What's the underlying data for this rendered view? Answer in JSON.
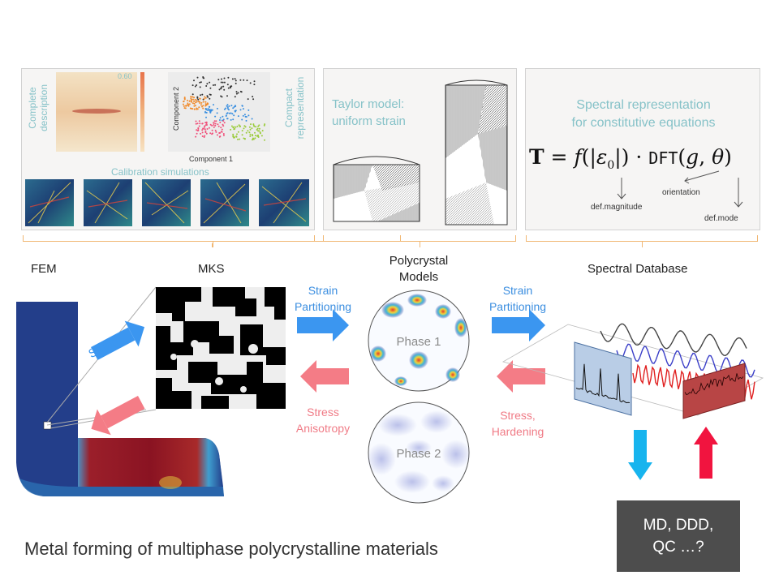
{
  "panels": {
    "left": {
      "heatmap_value": "0.60",
      "complete_description": "Complete description",
      "compact_representation": "Compact representation",
      "axis_y": "Component 2",
      "axis_x": "Component 1",
      "calibration": "Calibration simulations"
    },
    "middle": {
      "title_line1": "Taylor model:",
      "title_line2": "uniform strain"
    },
    "right": {
      "title_line1": "Spectral representation",
      "title_line2": "for constitutive equations",
      "ann_def_magnitude": "def.magnitude",
      "ann_orientation": "orientation",
      "ann_def_mode": "def.mode"
    }
  },
  "labels": {
    "fem": "FEM",
    "mks": "MKS",
    "polycrystal_line1": "Polycrystal",
    "polycrystal_line2": "Models",
    "spectral_database": "Spectral Database",
    "strain_arrow": "Strain",
    "stress_arrow": "Stress",
    "phase1": "Phase 1",
    "phase2": "Phase 2"
  },
  "flows": {
    "strain_partitioning_left_line1": "Strain",
    "strain_partitioning_left_line2": "Partitioning",
    "strain_partitioning_right_line1": "Strain",
    "strain_partitioning_right_line2": "Partitioning",
    "stress_anisotropy_line1": "Stress",
    "stress_anisotropy_line2": "Anisotropy",
    "stress_hardening_line1": "Stress,",
    "stress_hardening_line2": "Hardening"
  },
  "md_box": {
    "line1": "MD, DDD,",
    "line2": "QC …?"
  },
  "caption": "Metal forming of multiphase polycrystalline materials",
  "colors": {
    "teal_text": "#86c2c8",
    "blue_arrow": "#3b96f0",
    "red_arrow": "#f47c86",
    "cyan_arrow": "#17b4ee",
    "crimson_arrow": "#f1143f",
    "bracket": "#f1b772",
    "md_box": "#4d4d4d"
  }
}
